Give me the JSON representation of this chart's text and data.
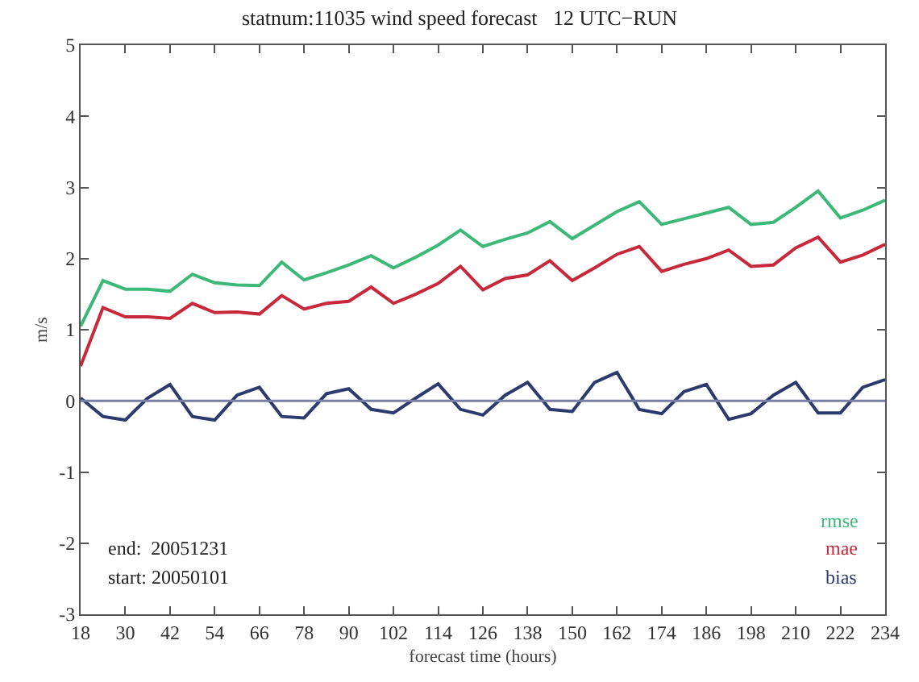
{
  "chart_data": {
    "type": "line",
    "title": "statnum:11035 wind speed forecast   12 UTC−RUN",
    "xlabel": "forecast time (hours)",
    "ylabel": "m/s",
    "x": [
      18,
      24,
      30,
      36,
      42,
      48,
      54,
      60,
      66,
      72,
      78,
      84,
      90,
      96,
      102,
      108,
      114,
      120,
      126,
      132,
      138,
      144,
      150,
      156,
      162,
      168,
      174,
      180,
      186,
      192,
      198,
      204,
      210,
      216,
      222,
      228,
      234
    ],
    "series": [
      {
        "name": "rmse",
        "color": "#3cb878",
        "values": [
          1.05,
          1.69,
          1.57,
          1.57,
          1.54,
          1.78,
          1.66,
          1.63,
          1.62,
          1.95,
          1.7,
          1.8,
          1.91,
          2.04,
          1.87,
          2.02,
          2.19,
          2.4,
          2.17,
          2.27,
          2.36,
          2.52,
          2.28,
          2.47,
          2.66,
          2.8,
          2.48,
          2.56,
          2.64,
          2.72,
          2.48,
          2.51,
          2.72,
          2.95,
          2.57,
          2.68,
          2.82
        ]
      },
      {
        "name": "mae",
        "color": "#c8283c",
        "values": [
          0.49,
          1.31,
          1.18,
          1.18,
          1.16,
          1.37,
          1.24,
          1.25,
          1.22,
          1.48,
          1.29,
          1.37,
          1.4,
          1.6,
          1.37,
          1.5,
          1.65,
          1.89,
          1.56,
          1.72,
          1.77,
          1.97,
          1.69,
          1.87,
          2.06,
          2.17,
          1.82,
          1.92,
          2.0,
          2.12,
          1.89,
          1.91,
          2.15,
          2.3,
          1.95,
          2.05,
          2.2
        ]
      },
      {
        "name": "bias",
        "color": "#2c3a6e",
        "values": [
          0.04,
          -0.22,
          -0.27,
          0.04,
          0.23,
          -0.22,
          -0.27,
          0.08,
          0.19,
          -0.22,
          -0.24,
          0.1,
          0.17,
          -0.12,
          -0.17,
          0.04,
          0.24,
          -0.12,
          -0.2,
          0.08,
          0.26,
          -0.12,
          -0.15,
          0.26,
          0.4,
          -0.12,
          -0.18,
          0.13,
          0.23,
          -0.26,
          -0.18,
          0.08,
          0.26,
          -0.17,
          -0.17,
          0.19,
          0.3
        ]
      }
    ],
    "xlim": [
      18,
      234
    ],
    "xticks": [
      18,
      30,
      42,
      54,
      66,
      78,
      90,
      102,
      114,
      126,
      138,
      150,
      162,
      174,
      186,
      198,
      210,
      222,
      234
    ],
    "ylim": [
      -3,
      5
    ],
    "yticks": [
      -3,
      -2,
      -1,
      0,
      1,
      2,
      3,
      4,
      5
    ],
    "ref_lines": [
      {
        "axis": "y",
        "value": 0,
        "color": "#7a7fa8"
      }
    ],
    "annotations": [
      "end:  20051231",
      "start: 20050101"
    ],
    "grid": false,
    "legend": "bottom right",
    "marker": "none",
    "line_style": "solid"
  }
}
